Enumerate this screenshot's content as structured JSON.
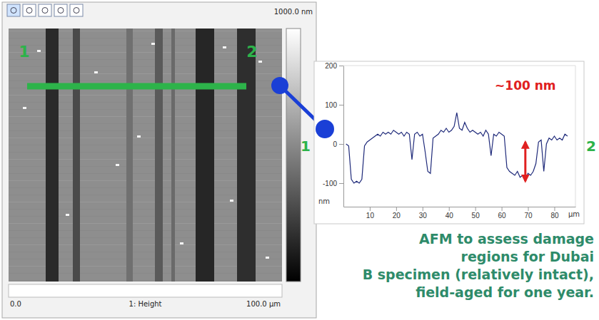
{
  "chart_data": {
    "type": "line",
    "color": "#1f2a7a",
    "x": [
      1,
      2,
      3,
      4,
      5,
      6,
      7,
      8,
      9,
      10,
      11,
      12,
      13,
      14,
      15,
      16,
      17,
      18,
      19,
      20,
      21,
      22,
      23,
      24,
      25,
      26,
      27,
      28,
      29,
      30,
      31,
      32,
      33,
      34,
      35,
      36,
      37,
      38,
      39,
      40,
      41,
      42,
      43,
      44,
      45,
      46,
      47,
      48,
      49,
      50,
      51,
      52,
      53,
      54,
      55,
      56,
      57,
      58,
      59,
      60,
      61,
      62,
      63,
      64,
      65,
      66,
      67,
      68,
      69,
      70,
      71,
      72,
      73,
      74,
      75,
      76,
      77,
      78,
      79,
      80,
      81,
      82,
      83,
      84,
      85
    ],
    "values": [
      0,
      -5,
      -90,
      -100,
      -95,
      -100,
      -90,
      -5,
      5,
      10,
      15,
      20,
      25,
      20,
      30,
      25,
      30,
      25,
      35,
      30,
      25,
      30,
      20,
      30,
      25,
      -40,
      25,
      30,
      20,
      25,
      -20,
      -70,
      -75,
      15,
      20,
      25,
      35,
      30,
      40,
      30,
      35,
      45,
      80,
      40,
      35,
      55,
      40,
      30,
      35,
      30,
      25,
      30,
      20,
      35,
      25,
      -30,
      25,
      20,
      30,
      25,
      20,
      -60,
      -70,
      -75,
      -80,
      -70,
      -85,
      -80,
      -90,
      -75,
      -80,
      -70,
      -50,
      5,
      10,
      -70,
      0,
      15,
      10,
      20,
      10,
      15,
      10,
      25,
      20
    ],
    "xlim": [
      0,
      88
    ],
    "ylim": [
      -160,
      200
    ],
    "xticks": [
      10,
      20,
      30,
      40,
      50,
      60,
      70,
      80
    ],
    "yticks": [
      -100,
      0,
      100,
      200
    ],
    "x_label": "µm",
    "y_label": "nm",
    "annotation": {
      "text": "~100 nm",
      "x": 69,
      "y": [
        -95,
        5
      ]
    }
  },
  "afm_image": {
    "colorbar_label": "1000.0 nm",
    "x_start_label": "0.0",
    "channel_label": "1: Height",
    "x_end_label": "100.0 µm",
    "line_labels": [
      "1",
      "2"
    ]
  },
  "caption": [
    "AFM to assess damage",
    "regions for Dubai",
    "B specimen (relatively intact),",
    "field-aged for one year."
  ]
}
